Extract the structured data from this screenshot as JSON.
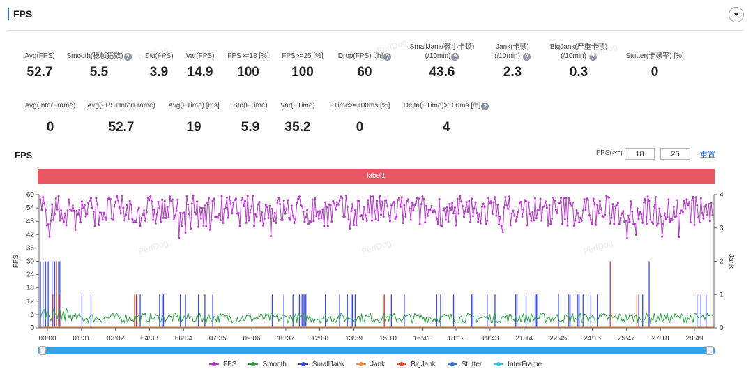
{
  "panel": {
    "title": "FPS"
  },
  "metrics_row1": [
    {
      "label": "Avg(FPS)",
      "value": "52.7",
      "help": false
    },
    {
      "label": "Smooth(稳帧指数)",
      "value": "5.5",
      "help": true
    },
    {
      "label": "Std(FPS)",
      "value": "3.9",
      "help": false
    },
    {
      "label": "Var(FPS)",
      "value": "14.9",
      "help": false
    },
    {
      "label": "FPS>=18 [%]",
      "value": "100",
      "help": false
    },
    {
      "label": "FPS>=25 [%]",
      "value": "100",
      "help": false
    },
    {
      "label": "Drop(FPS) [/h]",
      "value": "60",
      "help": true
    },
    {
      "label": "SmallJank(微小卡顿)",
      "label2": "(/10min)",
      "value": "43.6",
      "help": true
    },
    {
      "label": "Jank(卡顿)",
      "label2": "(/10min)",
      "value": "2.3",
      "help": true
    },
    {
      "label": "BigJank(严重卡顿)",
      "label2": "(/10min)",
      "value": "0.3",
      "help": true
    },
    {
      "label": "Stutter(卡顿率) [%]",
      "value": "0",
      "help": false
    }
  ],
  "metrics_row2": [
    {
      "label": "Avg(InterFrame)",
      "value": "0",
      "help": false
    },
    {
      "label": "Avg(FPS+InterFrame)",
      "value": "52.7",
      "help": false
    },
    {
      "label": "Avg(FTime) [ms]",
      "value": "19",
      "help": false
    },
    {
      "label": "Std(FTime)",
      "value": "5.9",
      "help": false
    },
    {
      "label": "Var(FTime)",
      "value": "35.2",
      "help": false
    },
    {
      "label": "FTime>=100ms [%]",
      "value": "0",
      "help": false
    },
    {
      "label": "Delta(FTime)>100ms [/h]",
      "value": "4",
      "help": true
    }
  ],
  "chart_section": {
    "title": "FPS",
    "threshold_label": "FPS(>=)",
    "threshold_1": "18",
    "threshold_2": "25",
    "reset_label": "重置",
    "band_label": "label1"
  },
  "watermark": "PerfDog",
  "colors": {
    "fps": "#b23cc4",
    "smooth": "#2ea043",
    "smalljank": "#3b4bd8",
    "jank": "#f08a3c",
    "bigjank": "#e03c2c",
    "stutter": "#2f6fd6",
    "interframe": "#3ec6e0",
    "band": "#e85663",
    "slider": "#3aa0e4"
  },
  "chart_data": {
    "type": "line",
    "x_tick_labels": [
      "00:00",
      "01:31",
      "03:02",
      "04:33",
      "06:04",
      "07:35",
      "09:06",
      "10:37",
      "12:08",
      "13:39",
      "15:10",
      "16:41",
      "18:12",
      "19:43",
      "21:14",
      "22:45",
      "24:16",
      "25:47",
      "27:18",
      "28:49"
    ],
    "y_left": {
      "label": "FPS",
      "ticks": [
        0,
        6,
        12,
        18,
        24,
        30,
        36,
        42,
        48,
        54,
        60
      ],
      "range": [
        0,
        60
      ]
    },
    "y_right": {
      "label": "Jank",
      "ticks": [
        0,
        1,
        2,
        3,
        4
      ],
      "range": [
        0,
        4
      ]
    },
    "series": [
      {
        "name": "FPS",
        "axis": "left",
        "mean": 52.7,
        "min": 40,
        "max": 60
      },
      {
        "name": "Smooth",
        "axis": "left",
        "typical_range": [
          2,
          8
        ]
      },
      {
        "name": "SmallJank",
        "axis": "right",
        "peak": 2
      },
      {
        "name": "Jank",
        "axis": "right",
        "peak": 2
      },
      {
        "name": "BigJank",
        "axis": "right",
        "peak": 1
      },
      {
        "name": "Stutter",
        "axis": "right",
        "value": 0
      },
      {
        "name": "InterFrame",
        "axis": "left",
        "value": 0
      }
    ],
    "legend": [
      "FPS",
      "Smooth",
      "SmallJank",
      "Jank",
      "BigJank",
      "Stutter",
      "InterFrame"
    ],
    "legend_position": "bottom",
    "grid": false
  }
}
